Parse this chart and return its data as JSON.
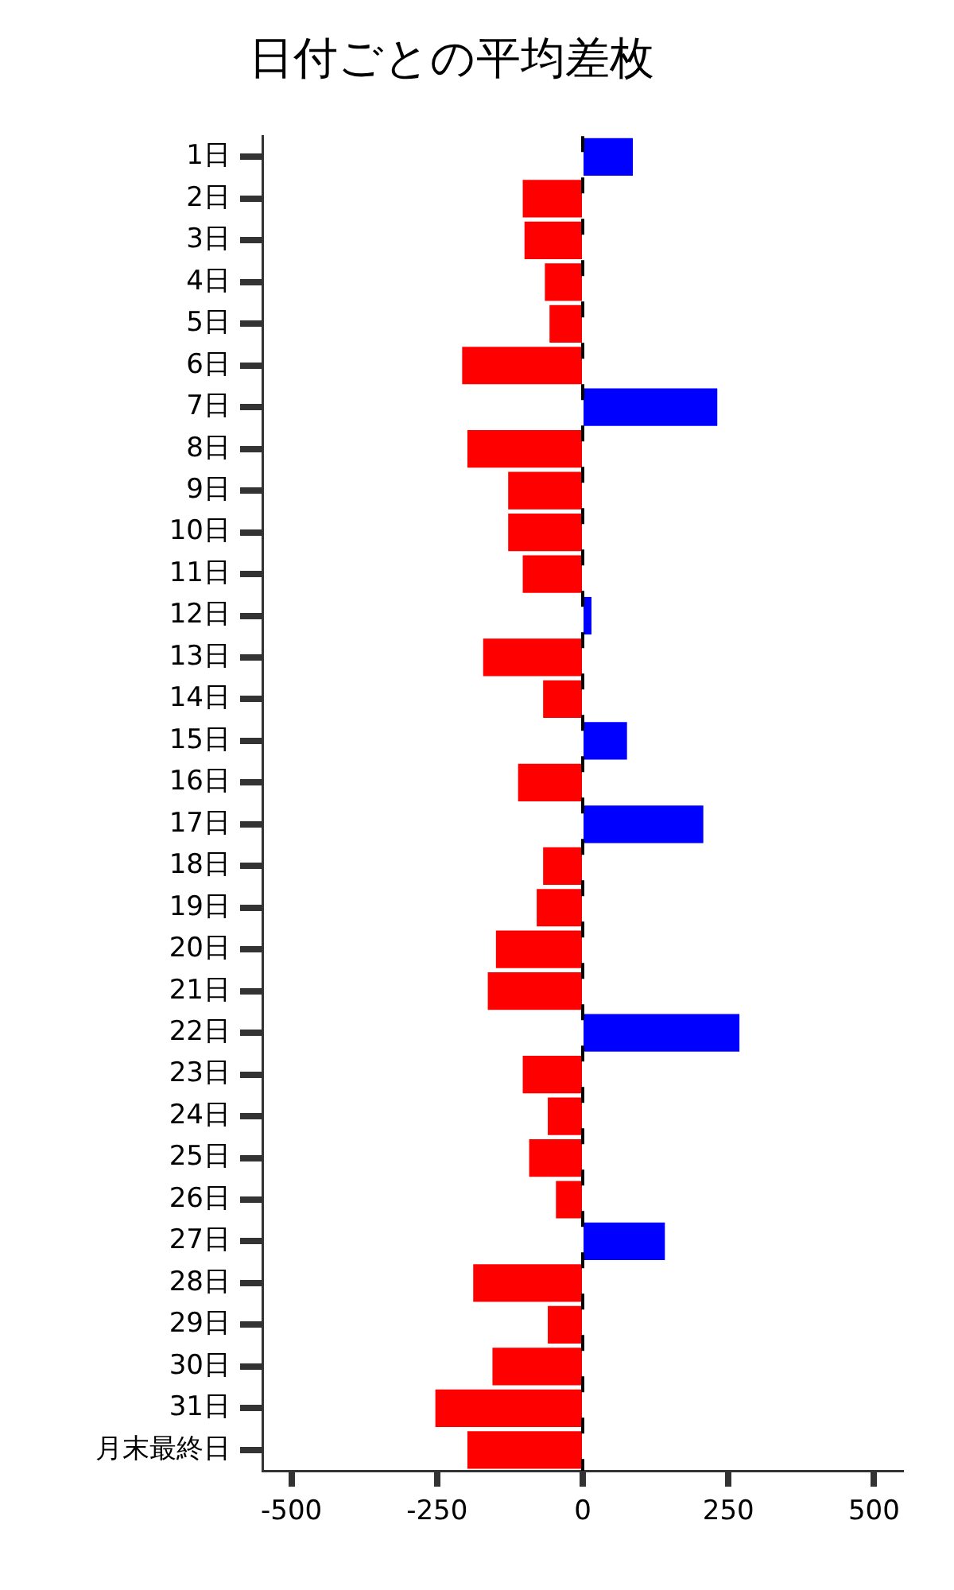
{
  "chart_data": {
    "type": "bar",
    "orientation": "horizontal",
    "title": "日付ごとの平均差枚",
    "categories": [
      "1日",
      "2日",
      "3日",
      "4日",
      "5日",
      "6日",
      "7日",
      "8日",
      "9日",
      "10日",
      "11日",
      "12日",
      "13日",
      "14日",
      "15日",
      "16日",
      "17日",
      "18日",
      "19日",
      "20日",
      "21日",
      "22日",
      "23日",
      "24日",
      "25日",
      "26日",
      "27日",
      "28日",
      "29日",
      "30日",
      "31日",
      "月末最終日"
    ],
    "values": [
      86,
      -103,
      -100,
      -65,
      -57,
      -207,
      231,
      -198,
      -128,
      -128,
      -103,
      15,
      -171,
      -68,
      76,
      -111,
      207,
      -68,
      -79,
      -149,
      -163,
      269,
      -103,
      -60,
      -92,
      -46,
      141,
      -188,
      -60,
      -155,
      -253,
      -198
    ],
    "colors": [
      "#0000ff",
      "#ff0000",
      "#ff0000",
      "#ff0000",
      "#ff0000",
      "#ff0000",
      "#0000ff",
      "#ff0000",
      "#ff0000",
      "#ff0000",
      "#ff0000",
      "#0000ff",
      "#ff0000",
      "#ff0000",
      "#0000ff",
      "#ff0000",
      "#0000ff",
      "#ff0000",
      "#ff0000",
      "#ff0000",
      "#ff0000",
      "#0000ff",
      "#ff0000",
      "#ff0000",
      "#ff0000",
      "#ff0000",
      "#0000ff",
      "#ff0000",
      "#ff0000",
      "#ff0000",
      "#ff0000",
      "#ff0000"
    ],
    "xlim": [
      -550,
      550
    ],
    "xticks": [
      -500,
      -250,
      0,
      250,
      500
    ],
    "ref_lines": [
      {
        "axis": "x",
        "value": 0,
        "color": "#000000",
        "line_style": "dashed"
      }
    ],
    "legend": false
  }
}
